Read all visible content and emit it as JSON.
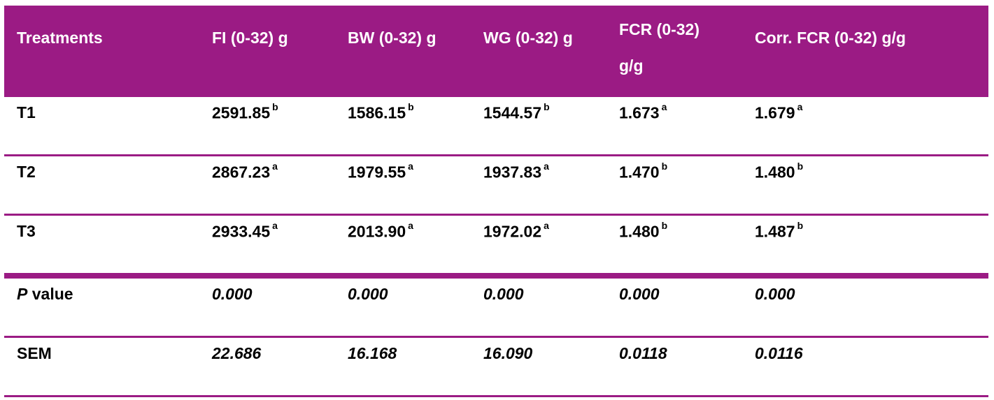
{
  "headers": [
    "Treatments",
    "FI (0-32) g",
    "BW (0-32) g",
    "WG (0-32) g",
    "FCR (0-32) g/g",
    "Corr. FCR (0-32) g/g"
  ],
  "rows": [
    {
      "label": "T1",
      "cells": [
        {
          "value": "2591.85",
          "sup": "b"
        },
        {
          "value": "1586.15",
          "sup": "b"
        },
        {
          "value": "1544.57",
          "sup": "b"
        },
        {
          "value": "1.673",
          "sup": "a"
        },
        {
          "value": "1.679",
          "sup": "a"
        }
      ]
    },
    {
      "label": "T2",
      "cells": [
        {
          "value": "2867.23",
          "sup": "a"
        },
        {
          "value": "1979.55",
          "sup": "a"
        },
        {
          "value": "1937.83",
          "sup": "a"
        },
        {
          "value": "1.470",
          "sup": "b"
        },
        {
          "value": "1.480",
          "sup": "b"
        }
      ]
    },
    {
      "label": "T3",
      "cells": [
        {
          "value": "2933.45",
          "sup": "a"
        },
        {
          "value": "2013.90",
          "sup": "a"
        },
        {
          "value": "1972.02",
          "sup": "a"
        },
        {
          "value": "1.480",
          "sup": "b"
        },
        {
          "value": "1.487",
          "sup": "b"
        }
      ]
    }
  ],
  "pvalue": {
    "label_italic": "P",
    "label_rest": " value",
    "values": [
      "0.000",
      "0.000",
      "0.000",
      "0.000",
      "0.000"
    ]
  },
  "sem": {
    "label": "SEM",
    "values": [
      "22.686",
      "16.168",
      "16.090",
      "0.0118",
      "0.0116"
    ]
  },
  "colors": {
    "header_bg": "#9b1b84",
    "header_text": "#ffffff",
    "rule": "#9b1b84"
  }
}
